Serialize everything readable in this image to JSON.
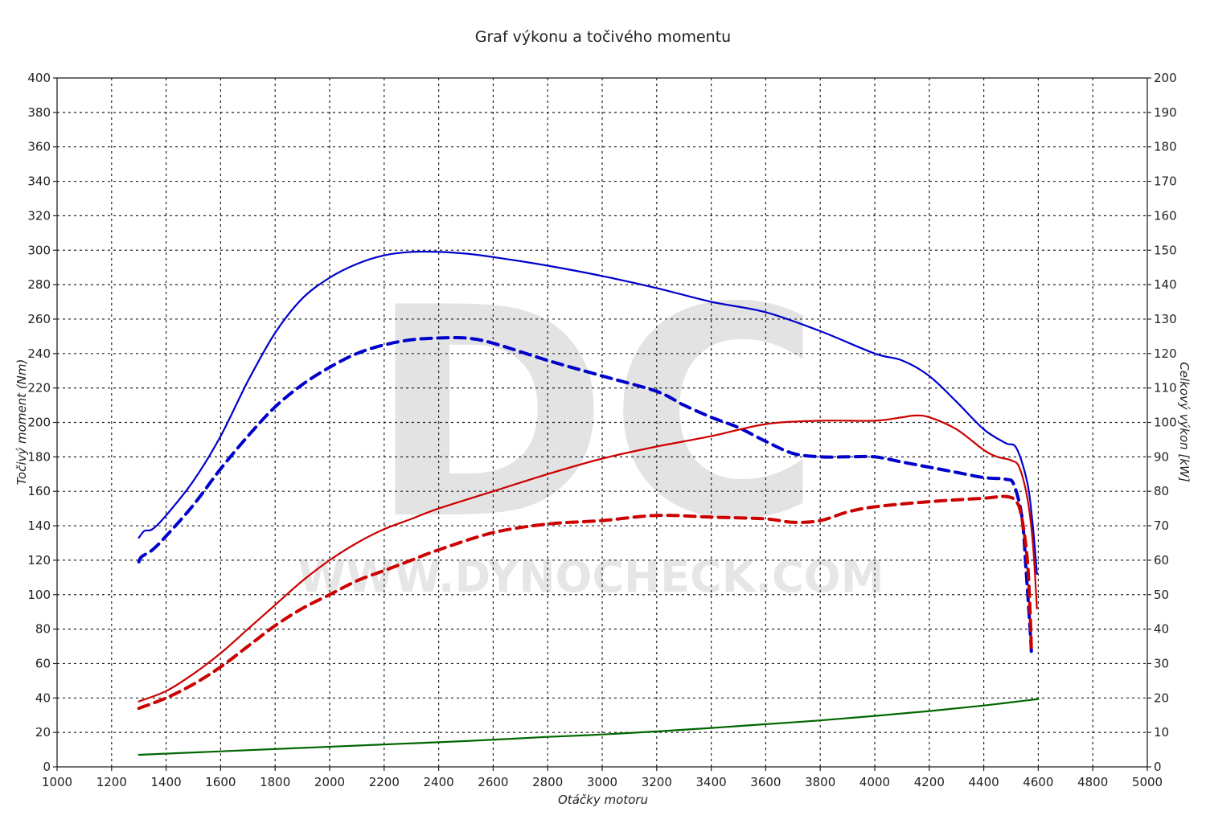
{
  "chart_data": {
    "type": "line",
    "title": "Graf výkonu a točivého momentu",
    "xlabel": "Otáčky motoru",
    "ylabel_left": "Točivý moment (Nm)",
    "ylabel_right": "Celkový výkon [kW]",
    "xlim": [
      1000,
      5000
    ],
    "ylim_left": [
      0,
      400
    ],
    "ylim_right": [
      0,
      200
    ],
    "grid": true,
    "watermark": {
      "logo": "DC",
      "url": "WWW.DYNOCHECK.COM"
    },
    "x_ticks": [
      1000,
      1200,
      1400,
      1600,
      1800,
      2000,
      2200,
      2400,
      2600,
      2800,
      3000,
      3200,
      3400,
      3600,
      3800,
      4000,
      4200,
      4400,
      4600,
      4800,
      5000
    ],
    "y_left_ticks": [
      0,
      20,
      40,
      60,
      80,
      100,
      120,
      140,
      160,
      180,
      200,
      220,
      240,
      260,
      280,
      300,
      320,
      340,
      360,
      380,
      400
    ],
    "y_right_ticks": [
      0,
      10,
      20,
      30,
      40,
      50,
      60,
      70,
      80,
      90,
      100,
      110,
      120,
      130,
      140,
      150,
      160,
      170,
      180,
      190,
      200
    ],
    "series": [
      {
        "axis": "left",
        "color": "#0000cc",
        "style": "solid",
        "width": 2.2,
        "points": [
          [
            1300,
            133
          ],
          [
            1320,
            137
          ],
          [
            1350,
            138
          ],
          [
            1400,
            146
          ],
          [
            1500,
            166
          ],
          [
            1600,
            192
          ],
          [
            1700,
            224
          ],
          [
            1800,
            252
          ],
          [
            1900,
            272
          ],
          [
            2000,
            284
          ],
          [
            2100,
            292
          ],
          [
            2200,
            297
          ],
          [
            2300,
            299
          ],
          [
            2400,
            299
          ],
          [
            2500,
            298
          ],
          [
            2600,
            296
          ],
          [
            2800,
            291
          ],
          [
            3000,
            285
          ],
          [
            3200,
            278
          ],
          [
            3400,
            270
          ],
          [
            3600,
            264
          ],
          [
            3800,
            253
          ],
          [
            4000,
            240
          ],
          [
            4100,
            236
          ],
          [
            4200,
            227
          ],
          [
            4300,
            212
          ],
          [
            4400,
            196
          ],
          [
            4480,
            188
          ],
          [
            4520,
            185
          ],
          [
            4560,
            165
          ],
          [
            4580,
            140
          ],
          [
            4595,
            112
          ]
        ]
      },
      {
        "axis": "left",
        "color": "#0000cc",
        "style": "dashed",
        "width": 4,
        "points": [
          [
            1300,
            119
          ],
          [
            1310,
            122
          ],
          [
            1350,
            126
          ],
          [
            1400,
            134
          ],
          [
            1500,
            152
          ],
          [
            1600,
            173
          ],
          [
            1700,
            192
          ],
          [
            1800,
            209
          ],
          [
            1900,
            222
          ],
          [
            2000,
            232
          ],
          [
            2100,
            240
          ],
          [
            2200,
            245
          ],
          [
            2300,
            248
          ],
          [
            2400,
            249
          ],
          [
            2500,
            249
          ],
          [
            2600,
            246
          ],
          [
            2800,
            236
          ],
          [
            3000,
            227
          ],
          [
            3200,
            218
          ],
          [
            3300,
            210
          ],
          [
            3400,
            203
          ],
          [
            3500,
            197
          ],
          [
            3600,
            189
          ],
          [
            3700,
            182
          ],
          [
            3800,
            180
          ],
          [
            3900,
            180
          ],
          [
            4000,
            180
          ],
          [
            4100,
            177
          ],
          [
            4200,
            174
          ],
          [
            4300,
            171
          ],
          [
            4400,
            168
          ],
          [
            4480,
            167
          ],
          [
            4510,
            164
          ],
          [
            4540,
            145
          ],
          [
            4555,
            115
          ],
          [
            4570,
            80
          ],
          [
            4575,
            66
          ]
        ]
      },
      {
        "axis": "right",
        "color": "#cc0000",
        "style": "solid",
        "width": 2.2,
        "points": [
          [
            1300,
            19
          ],
          [
            1400,
            22
          ],
          [
            1500,
            27
          ],
          [
            1600,
            33
          ],
          [
            1700,
            40
          ],
          [
            1800,
            47
          ],
          [
            1900,
            54
          ],
          [
            2000,
            60
          ],
          [
            2100,
            65
          ],
          [
            2200,
            69
          ],
          [
            2300,
            72
          ],
          [
            2400,
            75
          ],
          [
            2600,
            80
          ],
          [
            2800,
            85
          ],
          [
            3000,
            89.5
          ],
          [
            3200,
            93
          ],
          [
            3400,
            96
          ],
          [
            3600,
            99.5
          ],
          [
            3800,
            100.5
          ],
          [
            4000,
            100.5
          ],
          [
            4100,
            101.5
          ],
          [
            4150,
            102
          ],
          [
            4200,
            101.5
          ],
          [
            4300,
            98
          ],
          [
            4400,
            92
          ],
          [
            4450,
            90
          ],
          [
            4500,
            89
          ],
          [
            4530,
            87
          ],
          [
            4560,
            78
          ],
          [
            4580,
            65
          ],
          [
            4595,
            46
          ]
        ]
      },
      {
        "axis": "right",
        "color": "#cc0000",
        "style": "dashed",
        "width": 4,
        "points": [
          [
            1300,
            17
          ],
          [
            1400,
            20
          ],
          [
            1500,
            24
          ],
          [
            1600,
            29
          ],
          [
            1700,
            35
          ],
          [
            1800,
            41
          ],
          [
            1900,
            46
          ],
          [
            2000,
            50
          ],
          [
            2100,
            54
          ],
          [
            2200,
            57
          ],
          [
            2300,
            60
          ],
          [
            2400,
            63
          ],
          [
            2600,
            68
          ],
          [
            2800,
            70.5
          ],
          [
            3000,
            71.5
          ],
          [
            3200,
            73
          ],
          [
            3400,
            72.5
          ],
          [
            3600,
            72
          ],
          [
            3700,
            71
          ],
          [
            3800,
            71.5
          ],
          [
            3900,
            74
          ],
          [
            4000,
            75.5
          ],
          [
            4200,
            77
          ],
          [
            4400,
            78
          ],
          [
            4480,
            78.5
          ],
          [
            4520,
            77
          ],
          [
            4540,
            72
          ],
          [
            4560,
            60
          ],
          [
            4570,
            45
          ],
          [
            4575,
            33
          ]
        ]
      },
      {
        "axis": "right",
        "color": "#006600",
        "style": "solid",
        "width": 2.2,
        "points": [
          [
            1300,
            3.5
          ],
          [
            1600,
            4.5
          ],
          [
            1900,
            5.5
          ],
          [
            2200,
            6.5
          ],
          [
            2500,
            7.5
          ],
          [
            2800,
            8.7
          ],
          [
            3000,
            9.4
          ],
          [
            3200,
            10.3
          ],
          [
            3400,
            11.3
          ],
          [
            3600,
            12.4
          ],
          [
            3800,
            13.5
          ],
          [
            4000,
            14.8
          ],
          [
            4200,
            16.2
          ],
          [
            4400,
            17.8
          ],
          [
            4600,
            19.7
          ]
        ]
      }
    ]
  }
}
